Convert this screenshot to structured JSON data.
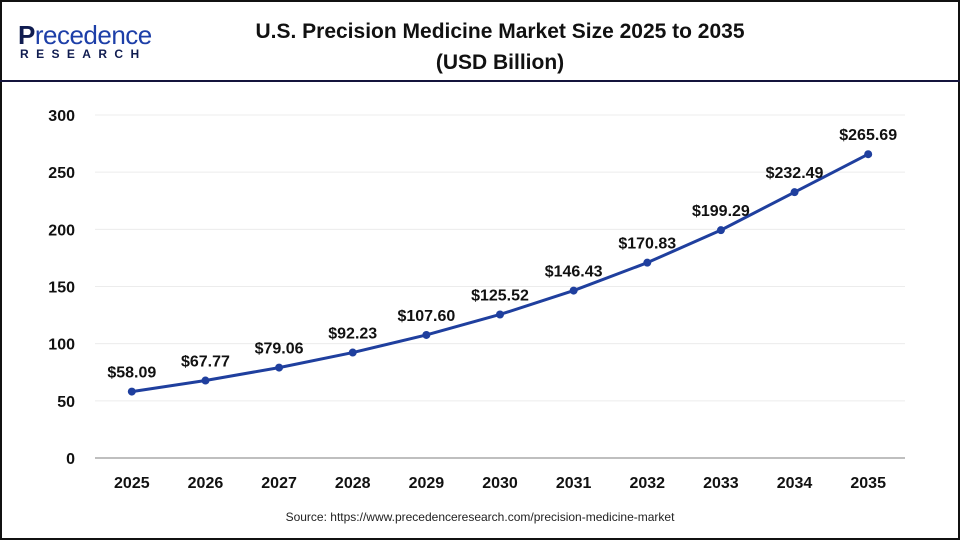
{
  "logo": {
    "initial": "P",
    "rest": "recedence",
    "sub": "RESEARCH"
  },
  "header": {
    "title_line1": "U.S. Precision Medicine Market Size 2025 to 2035",
    "title_line2": "(USD Billion)"
  },
  "source": "Source: https://www.precedenceresearch.com/precision-medicine-market",
  "colors": {
    "line": "#1f3f9e",
    "marker": "#1f3f9e",
    "grid": "#ececec",
    "axis": "#bfbfbf",
    "header_divider": "#14143c"
  },
  "chart_data": {
    "type": "line",
    "title": "U.S. Precision Medicine Market Size 2025 to 2035 (USD Billion)",
    "xlabel": "",
    "ylabel": "",
    "categories": [
      "2025",
      "2026",
      "2027",
      "2028",
      "2029",
      "2030",
      "2031",
      "2032",
      "2033",
      "2034",
      "2035"
    ],
    "series": [
      {
        "name": "Market Size (USD Billion)",
        "values": [
          58.09,
          67.77,
          79.06,
          92.23,
          107.6,
          125.52,
          146.43,
          170.83,
          199.29,
          232.49,
          265.69
        ],
        "labels": [
          "$58.09",
          "$67.77",
          "$79.06",
          "$92.23",
          "$107.60",
          "$125.52",
          "$146.43",
          "$170.83",
          "$199.29",
          "$232.49",
          "$265.69"
        ]
      }
    ],
    "ylim": [
      0,
      300
    ],
    "yticks": [
      0,
      50,
      100,
      150,
      200,
      250,
      300
    ],
    "grid": true,
    "legend": "none"
  }
}
